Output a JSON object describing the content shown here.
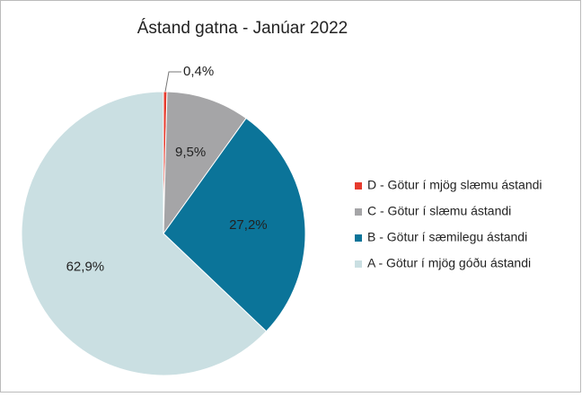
{
  "chart_data": {
    "type": "pie",
    "title": "Ástand gatna - Janúar 2022",
    "categories": [
      "D - Götur í mjög slæmu ástandi",
      "C - Götur í slæmu ástandi",
      "B - Götur í sæmilegu ástandi",
      "A - Götur í mjög góðu ástandi"
    ],
    "values": [
      0.4,
      9.5,
      27.2,
      62.9
    ],
    "value_labels": [
      "0,4%",
      "9,5%",
      "27,2%",
      "62,9%"
    ],
    "colors": [
      "#e63b2e",
      "#a5a5a7",
      "#0b7499",
      "#cadfe2"
    ],
    "legend": "right"
  }
}
